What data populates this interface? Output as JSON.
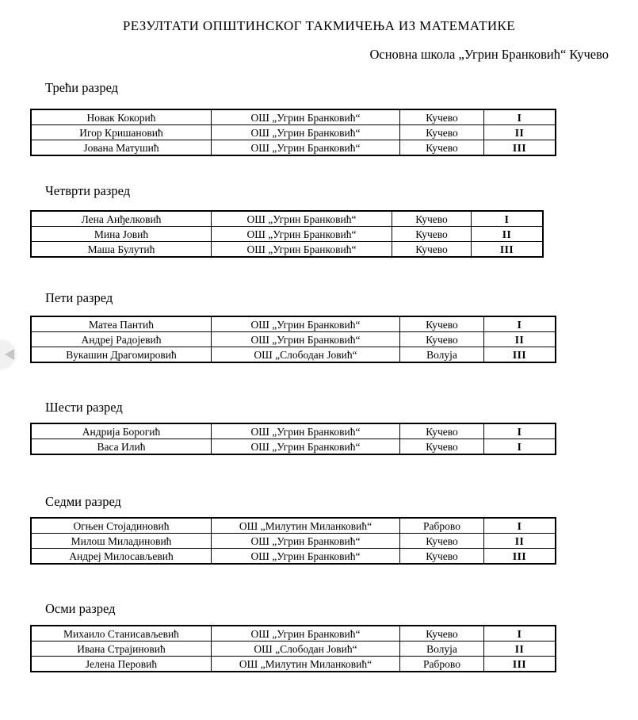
{
  "page": {
    "title": "РЕЗУЛТАТИ ОПШТИНСКОГ ТАКМИЧЕЊА ИЗ МАТЕМАТИКЕ",
    "subtitle": "Основна школа „Угрин Бранковић“ Кучево"
  },
  "nav": {
    "prev_icon": "left-arrow"
  },
  "sections": [
    {
      "heading": "Трећи разред",
      "rows": [
        {
          "name": "Новак Кокорић",
          "school": "ОШ „Угрин Бранковић“",
          "town": "Кучево",
          "place": "I"
        },
        {
          "name": "Игор Кришановић",
          "school": "ОШ „Угрин Бранковић“",
          "town": "Кучево",
          "place": "II"
        },
        {
          "name": "Јована Матушић",
          "school": "ОШ „Угрин Бранковић“",
          "town": "Кучево",
          "place": "III"
        }
      ]
    },
    {
      "heading": "Четврти разред",
      "rows": [
        {
          "name": "Лена Анђелковић",
          "school": "ОШ „Угрин Бранковић“",
          "town": "Кучево",
          "place": "I"
        },
        {
          "name": "Мина Јовић",
          "school": "ОШ „Угрин Бранковић“",
          "town": "Кучево",
          "place": "II"
        },
        {
          "name": "Маша Булутић",
          "school": "ОШ „Угрин Бранковић“",
          "town": "Кучево",
          "place": "III"
        }
      ]
    },
    {
      "heading": "Пети разред",
      "rows": [
        {
          "name": "Матеа Пантић",
          "school": "ОШ „Угрин Бранковић“",
          "town": "Кучево",
          "place": "I"
        },
        {
          "name": "Андреј Радојевић",
          "school": "ОШ „Угрин Бранковић“",
          "town": "Кучево",
          "place": "II"
        },
        {
          "name": "Вукашин Драгомировић",
          "school": "ОШ „Слободан Јовић“",
          "town": "Волуја",
          "place": "III"
        }
      ]
    },
    {
      "heading": "Шести разред",
      "rows": [
        {
          "name": "Андрија Борогић",
          "school": "ОШ „Угрин Бранковић“",
          "town": "Кучево",
          "place": "I"
        },
        {
          "name": "Васа Илић",
          "school": "ОШ „Угрин Бранковић“",
          "town": "Кучево",
          "place": "I"
        }
      ]
    },
    {
      "heading": "Седми разред",
      "rows": [
        {
          "name": "Огњен Стојадиновић",
          "school": "ОШ „Милутин Миланковић“",
          "town": "Раброво",
          "place": "I"
        },
        {
          "name": "Милош Миладиновић",
          "school": "ОШ „Угрин Бранковић“",
          "town": "Кучево",
          "place": "II"
        },
        {
          "name": "Андреј Милосављевић",
          "school": "ОШ „Угрин Бранковић“",
          "town": "Кучево",
          "place": "III"
        }
      ]
    },
    {
      "heading": "Осми разред",
      "rows": [
        {
          "name": "Михаило Станисављевић",
          "school": "ОШ „Угрин Бранковић“",
          "town": "Кучево",
          "place": "I"
        },
        {
          "name": "Ивана Страјиновић",
          "school": "ОШ „Слободан Јовић“",
          "town": "Волуја",
          "place": "II"
        },
        {
          "name": "Јелена Перовић",
          "school": "ОШ „Милутин Миланковић“",
          "town": "Раброво",
          "place": "III"
        }
      ]
    }
  ]
}
